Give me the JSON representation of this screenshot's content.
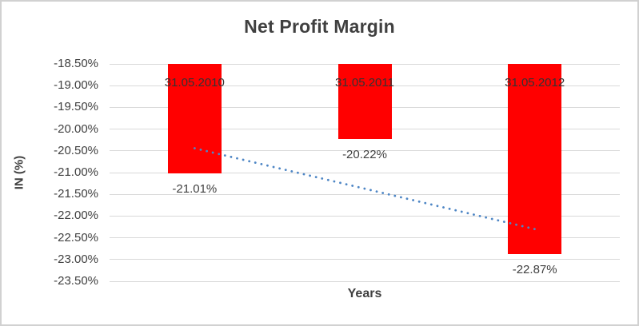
{
  "chart_data": {
    "type": "bar",
    "title": "Net Profit Margin",
    "categories": [
      "31.05.2010",
      "31.05.2011",
      "31.05.2012"
    ],
    "values": [
      -21.01,
      -20.22,
      -22.87
    ],
    "value_labels": [
      "-21.01%",
      "-20.22%",
      "-22.87%"
    ],
    "xlabel": "Years",
    "ylabel": "IN (%)",
    "ylim": [
      -23.5,
      -18.5
    ],
    "y_tick_step": 0.5,
    "y_ticks": [
      "-18.50%",
      "-19.00%",
      "-19.50%",
      "-20.00%",
      "-20.50%",
      "-21.00%",
      "-21.50%",
      "-22.00%",
      "-22.50%",
      "-23.00%",
      "-23.50%"
    ],
    "grid": true,
    "legend": "none",
    "bars_clipped_at_axis_max": true,
    "trendline": {
      "type": "linear",
      "style": "dotted",
      "start_pct": -20.44,
      "end_pct": -22.3
    },
    "colors": {
      "bar": "#FF0000",
      "gridline": "#D9D9D9",
      "text": "#404040",
      "trendline": "#4E86C5",
      "border": "#D1D1D1",
      "background": "#FFFFFF"
    }
  }
}
